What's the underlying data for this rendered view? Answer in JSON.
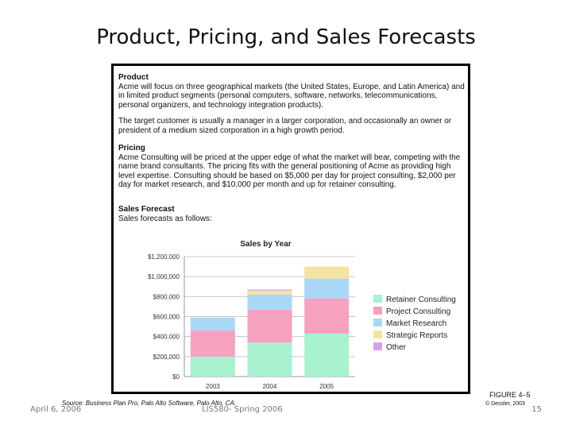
{
  "slide": {
    "title": "Product, Pricing, and Sales Forecasts",
    "figure_label": "FIGURE 4–5",
    "copyright": "© Dessler, 2003",
    "source": "Source: Business Plan Pro, Palo Alto Software, Palo Alto, CA.",
    "footer_date": "April 6, 2006",
    "footer_course": "LIS580- Spring 2006",
    "footer_page": "15"
  },
  "sections": {
    "product_heading": "Product",
    "product_text1": "Acme will focus on three geographical markets (the United States, Europe, and Latin America) and in limited product segments (personal computers, software, networks, telecommunications, personal organizers, and technology integration products).",
    "product_text2": "The target customer is usually a manager in a larger corporation, and occasionally an owner or president of a medium sized corporation in a high growth period.",
    "pricing_heading": "Pricing",
    "pricing_text": "Acme Consulting will be priced at the upper edge of what the market will bear, competing with the name brand consultants. The pricing fits with the general positioning of Acme as providing high level expertise. Consulting should be based on $5,000 per day for project consulting, $2,000 per day for market research, and $10,000 per month and up for retainer consulting.",
    "sales_heading": "Sales Forecast",
    "sales_text": "Sales forecasts as follows:"
  },
  "chart_data": {
    "type": "bar",
    "stacked": true,
    "title": "Sales by Year",
    "categories": [
      "2003",
      "2004",
      "2005"
    ],
    "y_ticks": [
      "$0",
      "$200,000",
      "$400,000",
      "$600,000",
      "$800,000",
      "$1,000,000",
      "$1,200,000"
    ],
    "ylim": [
      0,
      1200000
    ],
    "grid": true,
    "legend_position": "right",
    "series": [
      {
        "name": "Retainer Consulting",
        "color": "#a8f2d0",
        "values": [
          200000,
          340000,
          430000
        ]
      },
      {
        "name": "Project Consulting",
        "color": "#f7a1c0",
        "values": [
          260000,
          330000,
          350000
        ]
      },
      {
        "name": "Market Research",
        "color": "#a9d8f7",
        "values": [
          130000,
          150000,
          200000
        ]
      },
      {
        "name": "Strategic Reports",
        "color": "#f5e3a0",
        "values": [
          0,
          40000,
          120000
        ]
      },
      {
        "name": "Other",
        "color": "#d9a0ea",
        "values": [
          0,
          10000,
          0
        ]
      }
    ]
  }
}
